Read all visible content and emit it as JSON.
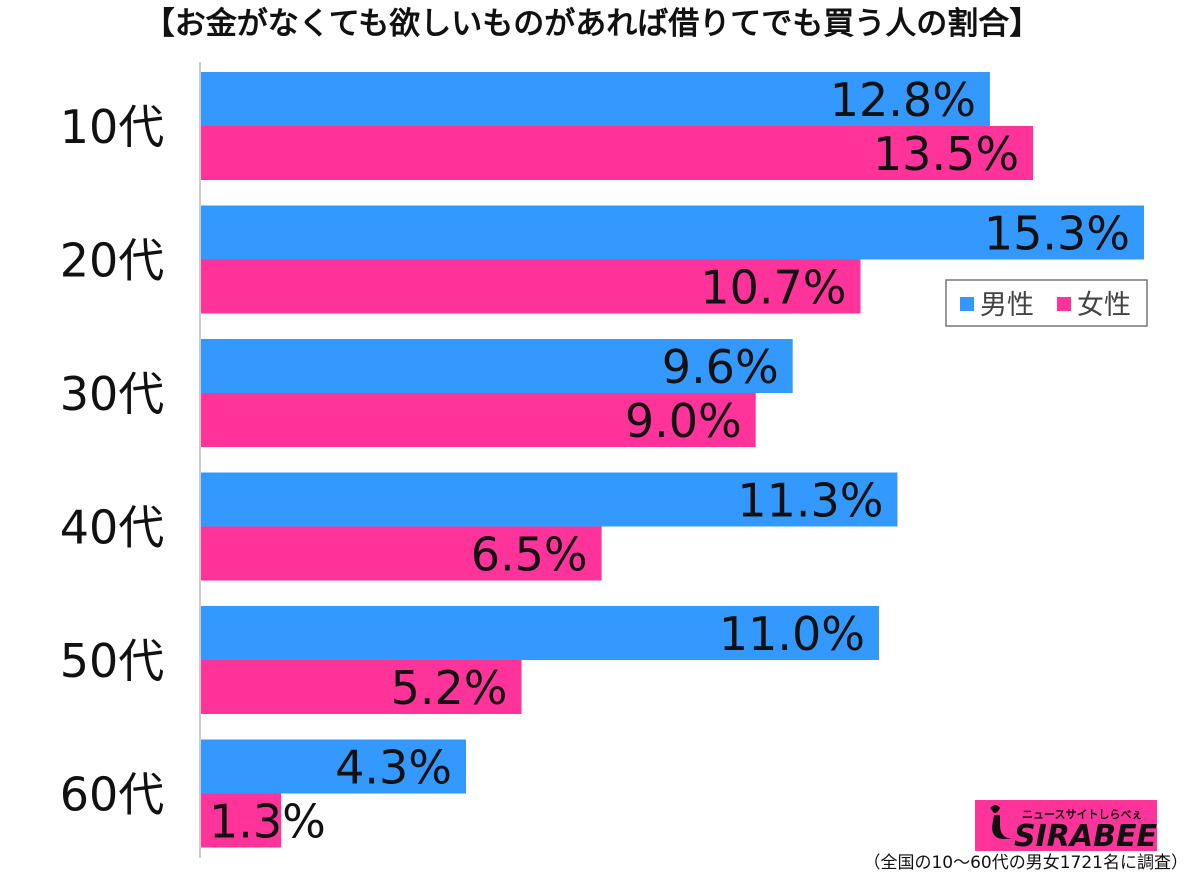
{
  "chart_data": {
    "type": "bar",
    "orientation": "horizontal",
    "title": "【お金がなくても欲しいものがあれば借りてでも買う人の割合】",
    "categories": [
      "10代",
      "20代",
      "30代",
      "40代",
      "50代",
      "60代"
    ],
    "series": [
      {
        "name": "男性",
        "color": "#3399ff",
        "values": [
          12.8,
          15.3,
          9.6,
          11.3,
          11.0,
          4.3
        ]
      },
      {
        "name": "女性",
        "color": "#ff3399",
        "values": [
          13.5,
          10.7,
          9.0,
          6.5,
          5.2,
          1.3
        ]
      }
    ],
    "value_labels": [
      [
        "12.8%",
        "15.3%",
        "9.6%",
        "11.3%",
        "11.0%",
        "4.3%"
      ],
      [
        "13.5%",
        "10.7%",
        "9.0%",
        "6.5%",
        "5.2%",
        "1.3%"
      ]
    ],
    "xlim": [
      0,
      15.3
    ],
    "grid": false,
    "legend": {
      "position": "right"
    },
    "note": "（全国の10〜60代の男女1721名に調査）"
  },
  "logo": {
    "name": "SIRABEE",
    "tagline": "ニュースサイトしらべぇ"
  }
}
